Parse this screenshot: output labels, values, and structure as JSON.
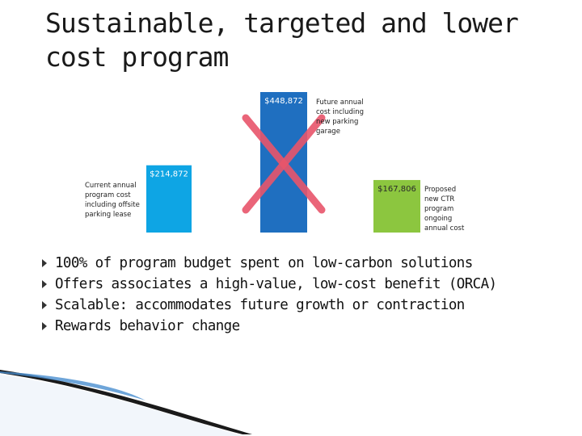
{
  "slide": {
    "title": "Sustainable, targeted and lower cost program",
    "bullets": [
      "100% of program budget spent on low-carbon solutions",
      "Offers associates a high-value, low-cost benefit (ORCA)",
      "Scalable: accommodates future growth or contraction",
      "Rewards behavior change"
    ]
  },
  "chart_data": {
    "type": "bar",
    "categories": [
      "",
      "",
      ""
    ],
    "values": [
      214872,
      448872,
      167806
    ],
    "value_labels": [
      "$214,872",
      "$448,872",
      "$167,806"
    ],
    "annotations": [
      "Current annual program cost including offsite parking lease",
      "Future annual cost including new parking garage",
      "Proposed new CTR program ongoing annual cost"
    ],
    "crossed_out_index": 1,
    "colors": [
      "#0ea5e4",
      "#1f6fc0",
      "#8cc63f"
    ],
    "cross_color": "#e8556b",
    "axes_visible": false,
    "grid": false,
    "legend": "none",
    "ylim": [
      0,
      448872
    ]
  }
}
